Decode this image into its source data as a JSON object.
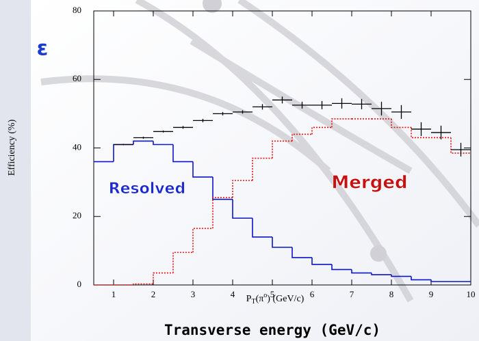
{
  "chart_data": {
    "type": "histogram",
    "symbol": "ε",
    "y_label": "Efficiency (%)",
    "x_label_parts": [
      "P",
      "T",
      "(π",
      "o",
      ") (GeV/c)"
    ],
    "caption": "Transverse energy  (GeV/c)",
    "xlim": [
      0.5,
      10
    ],
    "ylim": [
      0,
      80
    ],
    "xticks": [
      1,
      2,
      3,
      4,
      5,
      6,
      7,
      8,
      9,
      10
    ],
    "yticks": [
      0,
      20,
      40,
      60,
      80
    ],
    "bins": [
      0.5,
      1,
      1.5,
      2,
      2.5,
      3,
      3.5,
      4,
      4.5,
      5,
      5.5,
      6,
      6.5,
      7,
      7.5,
      8,
      8.5,
      9,
      9.5,
      10
    ],
    "series": [
      {
        "name": "Resolved",
        "color": "#0a14c8",
        "dash": "none",
        "values": [
          36,
          41,
          42,
          41,
          36,
          31.5,
          25,
          19.5,
          14,
          11,
          8,
          6,
          4.5,
          3.5,
          3,
          2.5,
          1.5,
          1,
          1
        ]
      },
      {
        "name": "Merged",
        "color": "#e01010",
        "dash": "2 2",
        "values": [
          0,
          0,
          0.3,
          3.5,
          9.5,
          16.5,
          25.5,
          30.5,
          37,
          42,
          44,
          46,
          48.5,
          48.5,
          48.5,
          46,
          43,
          43,
          38.5
        ]
      }
    ],
    "points": {
      "color": "#000000",
      "x": [
        1.25,
        1.75,
        2.25,
        2.75,
        3.25,
        3.75,
        4.25,
        4.75,
        5.25,
        5.75,
        6.25,
        6.75,
        7.25,
        7.75,
        8.25,
        8.75,
        9.25,
        9.75
      ],
      "values": [
        41,
        43,
        44.8,
        46,
        48,
        50,
        50.5,
        52,
        54,
        52.5,
        52.5,
        53,
        52.8,
        51.5,
        50.5,
        45.5,
        44.5,
        39.5
      ],
      "errors": [
        0.2,
        0.3,
        0.3,
        0.4,
        0.5,
        0.5,
        0.5,
        0.8,
        1,
        1,
        1.2,
        1.5,
        1.5,
        2,
        2,
        2,
        2,
        2
      ]
    }
  }
}
